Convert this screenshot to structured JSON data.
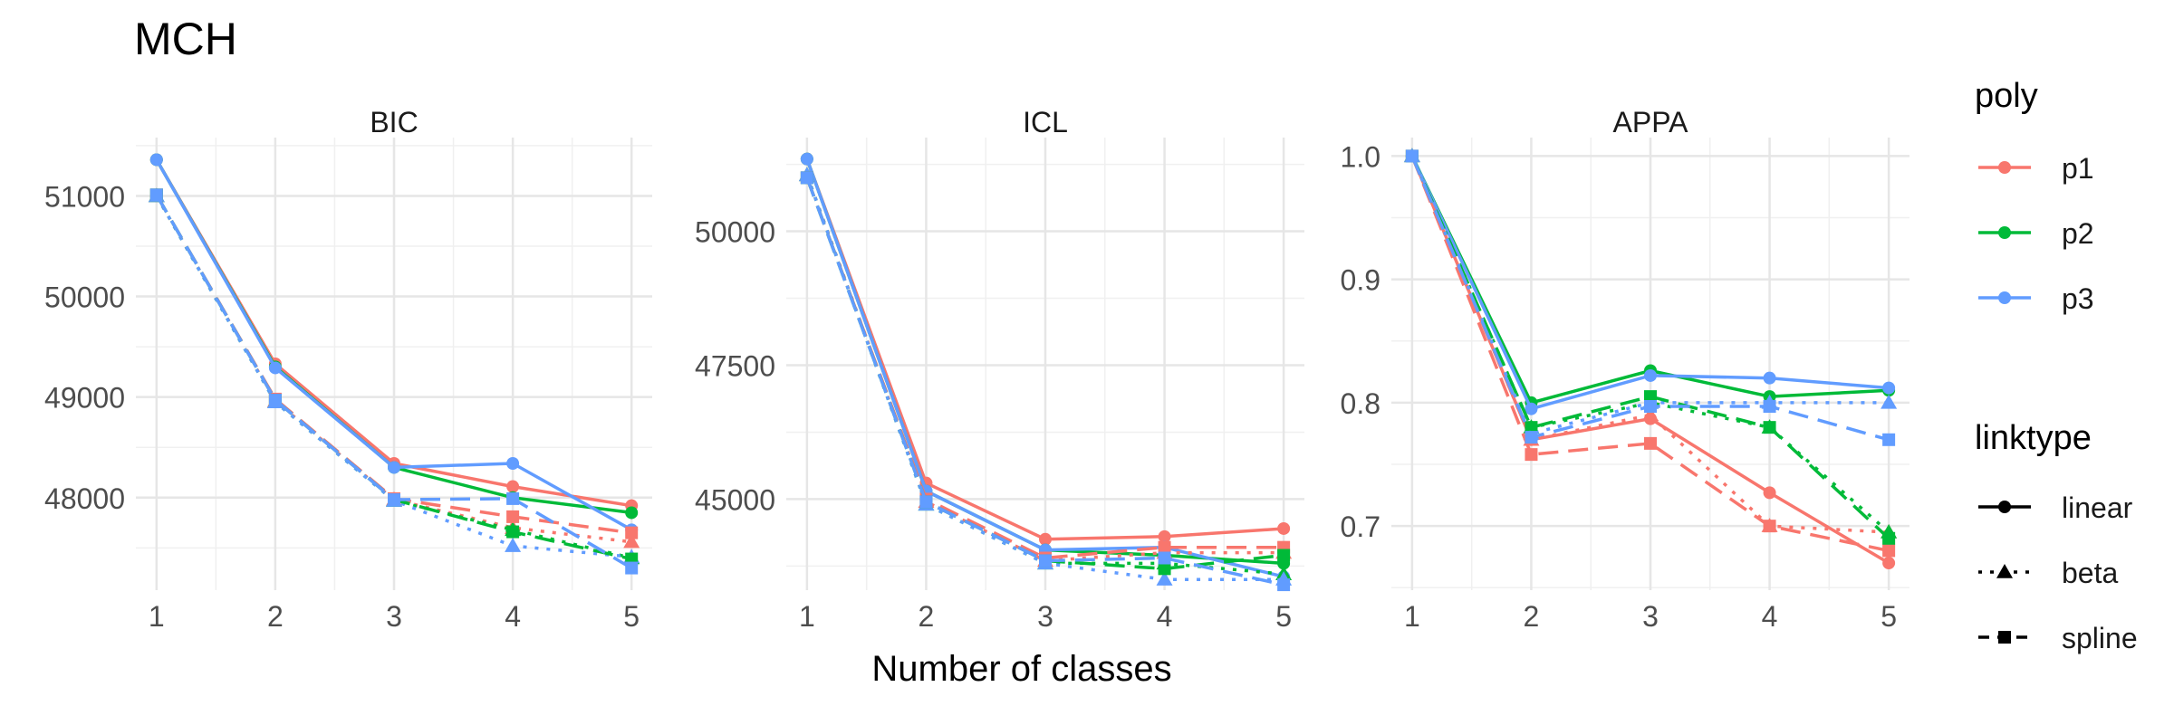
{
  "chart_data": {
    "type": "line",
    "title": "MCH",
    "xlabel": "Number of classes",
    "x": [
      1,
      2,
      3,
      4,
      5
    ],
    "legend": {
      "placement": "right",
      "poly_title": "poly",
      "poly_entries": [
        {
          "name": "p1",
          "color": "#F8766D"
        },
        {
          "name": "p2",
          "color": "#00BA38"
        },
        {
          "name": "p3",
          "color": "#619CFF"
        }
      ],
      "linktype_title": "linktype",
      "linktype_entries": [
        {
          "name": "linear",
          "dash": "solid",
          "shape": "circle"
        },
        {
          "name": "beta",
          "dash": "dotted",
          "shape": "triangle"
        },
        {
          "name": "spline",
          "dash": "longdash",
          "shape": "square"
        }
      ]
    },
    "grid": true,
    "facets": [
      {
        "label": "BIC",
        "ylim": [
          47080,
          51580
        ],
        "yticks": [
          48000,
          49000,
          50000,
          51000
        ],
        "yticklabels": [
          "48000",
          "49000",
          "50000",
          "51000"
        ],
        "xticklabels": [
          "1",
          "2",
          "3",
          "4",
          "5"
        ],
        "series": [
          {
            "poly": "p1",
            "linktype": "linear",
            "values": [
              51360,
              49330,
              48340,
              48110,
              47920
            ]
          },
          {
            "poly": "p2",
            "linktype": "linear",
            "values": [
              51360,
              49300,
              48300,
              48000,
              47850
            ]
          },
          {
            "poly": "p3",
            "linktype": "linear",
            "values": [
              51360,
              49290,
              48300,
              48340,
              47680
            ]
          },
          {
            "poly": "p1",
            "linktype": "beta",
            "values": [
              51000,
              48960,
              47980,
              47700,
              47560
            ]
          },
          {
            "poly": "p2",
            "linktype": "beta",
            "values": [
              51000,
              48950,
              47970,
              47680,
              47400
            ]
          },
          {
            "poly": "p3",
            "linktype": "beta",
            "values": [
              51000,
              48950,
              47970,
              47520,
              47410
            ]
          },
          {
            "poly": "p1",
            "linktype": "spline",
            "values": [
              51010,
              48980,
              47990,
              47810,
              47650
            ]
          },
          {
            "poly": "p2",
            "linktype": "spline",
            "values": [
              51010,
              48970,
              47980,
              47660,
              47390
            ]
          },
          {
            "poly": "p3",
            "linktype": "spline",
            "values": [
              51010,
              48970,
              47980,
              47990,
              47300
            ]
          }
        ]
      },
      {
        "label": "ICL",
        "ylim": [
          43300,
          51750
        ],
        "yticks": [
          45000,
          47500,
          50000
        ],
        "yticklabels": [
          "45000",
          "47500",
          "50000"
        ],
        "xticklabels": [
          "1",
          "2",
          "3",
          "4",
          "5"
        ],
        "series": [
          {
            "poly": "p1",
            "linktype": "linear",
            "values": [
              51350,
              45300,
              44250,
              44300,
              44450
            ]
          },
          {
            "poly": "p2",
            "linktype": "linear",
            "values": [
              51350,
              45150,
              44050,
              43950,
              43800
            ]
          },
          {
            "poly": "p3",
            "linktype": "linear",
            "values": [
              51350,
              45150,
              44050,
              44100,
              43550
            ]
          },
          {
            "poly": "p1",
            "linktype": "beta",
            "values": [
              51050,
              44950,
              43850,
              44000,
              44000
            ]
          },
          {
            "poly": "p2",
            "linktype": "beta",
            "values": [
              51050,
              44900,
              43800,
              43800,
              43600
            ]
          },
          {
            "poly": "p3",
            "linktype": "beta",
            "values": [
              51050,
              44900,
              43800,
              43500,
              43500
            ]
          },
          {
            "poly": "p1",
            "linktype": "spline",
            "values": [
              51000,
              45000,
              43900,
              44100,
              44100
            ]
          },
          {
            "poly": "p2",
            "linktype": "spline",
            "values": [
              51000,
              44950,
              43850,
              43700,
              43950
            ]
          },
          {
            "poly": "p3",
            "linktype": "spline",
            "values": [
              51000,
              44950,
              43850,
              43900,
              43400
            ]
          }
        ]
      },
      {
        "label": "APPA",
        "ylim": [
          0.648,
          1.015
        ],
        "yticks": [
          0.7,
          0.8,
          0.9,
          1.0
        ],
        "yticklabels": [
          "0.7",
          "0.8",
          "0.9",
          "1.0"
        ],
        "xticklabels": [
          "1",
          "2",
          "3",
          "4",
          "5"
        ],
        "series": [
          {
            "poly": "p1",
            "linktype": "linear",
            "values": [
              1.0,
              0.77,
              0.787,
              0.727,
              0.67
            ]
          },
          {
            "poly": "p2",
            "linktype": "linear",
            "values": [
              1.0,
              0.8,
              0.826,
              0.805,
              0.81
            ]
          },
          {
            "poly": "p3",
            "linktype": "linear",
            "values": [
              1.0,
              0.795,
              0.822,
              0.82,
              0.812
            ]
          },
          {
            "poly": "p1",
            "linktype": "beta",
            "values": [
              1.0,
              0.77,
              0.79,
              0.7,
              0.695
            ]
          },
          {
            "poly": "p2",
            "linktype": "beta",
            "values": [
              1.0,
              0.78,
              0.8,
              0.78,
              0.695
            ]
          },
          {
            "poly": "p3",
            "linktype": "beta",
            "values": [
              1.0,
              0.775,
              0.8,
              0.8,
              0.8
            ]
          },
          {
            "poly": "p1",
            "linktype": "spline",
            "values": [
              1.0,
              0.758,
              0.767,
              0.7,
              0.68
            ]
          },
          {
            "poly": "p2",
            "linktype": "spline",
            "values": [
              1.0,
              0.78,
              0.805,
              0.78,
              0.69
            ]
          },
          {
            "poly": "p3",
            "linktype": "spline",
            "values": [
              1.0,
              0.772,
              0.797,
              0.797,
              0.77
            ]
          }
        ]
      }
    ]
  }
}
